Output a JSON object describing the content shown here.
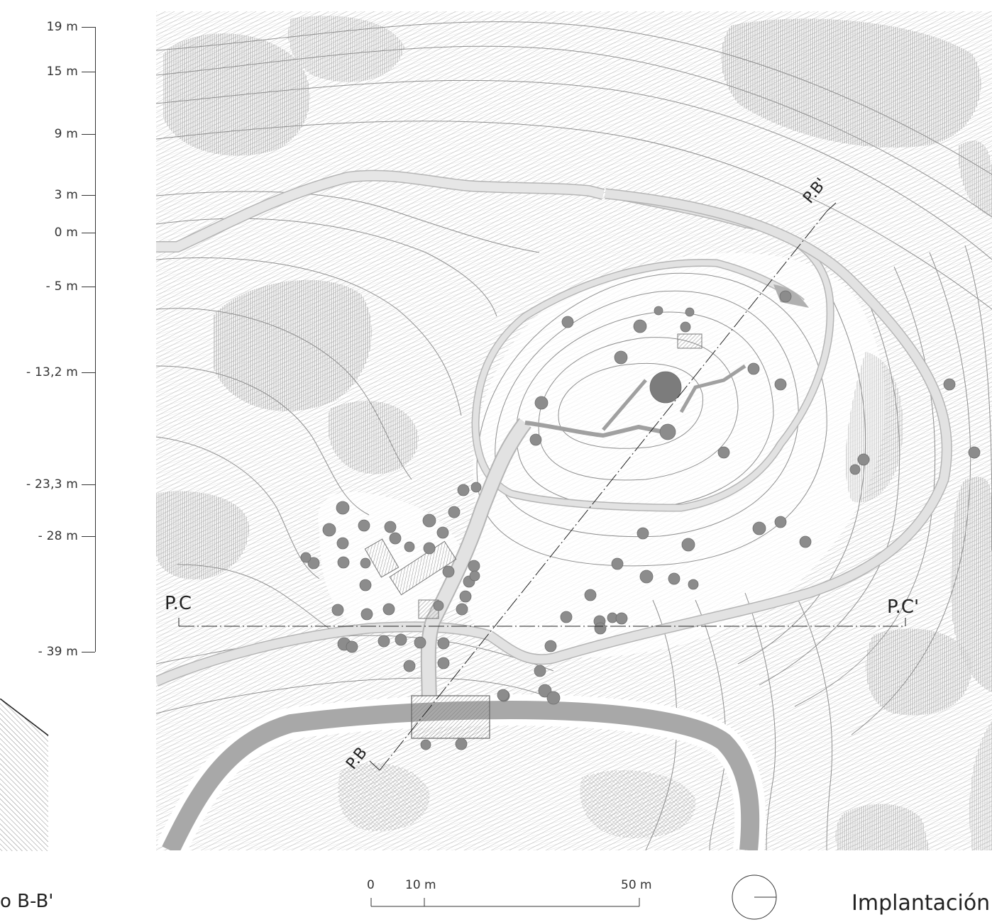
{
  "elevation_scale": {
    "labels": [
      "19 m",
      "15 m",
      "9 m",
      "3 m",
      "0 m",
      "- 5 m",
      "- 13,2 m",
      "- 23,3 m",
      "- 28 m",
      "- 39 m"
    ]
  },
  "section_title_fragment": "o B-B'",
  "map": {
    "section_markers": {
      "b_start": "P.B",
      "b_end": "P.B'",
      "c_start": "P.C",
      "c_end": "P.C'"
    }
  },
  "scale_bar": {
    "labels": [
      "0",
      "10 m",
      "50 m"
    ]
  },
  "plan_title": "Implantación",
  "colors": {
    "hatch_line": "#9a9a9a",
    "contour": "#8f8f8f",
    "path_fill": "#e0e0e0",
    "road_fill": "#a8a8a8",
    "tree_fill": "#8c8c8c",
    "ink": "#222222"
  }
}
